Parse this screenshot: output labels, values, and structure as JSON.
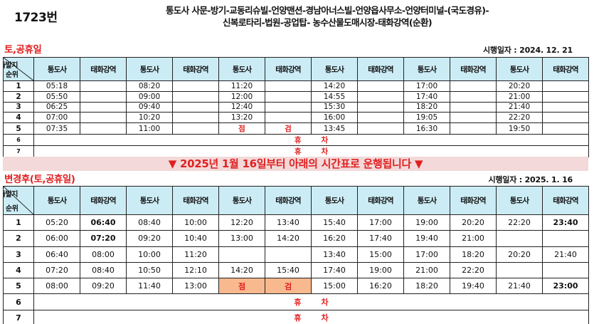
{
  "route": {
    "number": "1723번",
    "line1": "통도사 사문-방기-교동리슈빌-언양맨션-경남아너스빌-언양읍사무소-언양터미널-(국도경유)-",
    "line2": "신복로타리-법원-공업탑- 농수산물도매시장-태화강역(순환)"
  },
  "notice": "▼ 2025년 1월 16일부터 아래의 시간표로 운행됩니다 ▼",
  "corner": {
    "top": "출발지",
    "bottom": "순위"
  },
  "stops": [
    "통도사",
    "태화강역"
  ],
  "closed_text": "휴차",
  "inspection": [
    "점",
    "검"
  ],
  "old": {
    "title": "토,공휴일",
    "effective": "시행일자 : 2024. 12. 21",
    "rows": [
      {
        "n": "1",
        "c": [
          "05:18",
          "",
          "08:20",
          "",
          "11:20",
          "",
          "14:20",
          "",
          "17:00",
          "",
          "20:20",
          ""
        ]
      },
      {
        "n": "2",
        "c": [
          "05:50",
          "",
          "09:00",
          "",
          "12:00",
          "",
          "14:55",
          "",
          "17:40",
          "",
          "21:00",
          ""
        ]
      },
      {
        "n": "3",
        "c": [
          "06:25",
          "",
          "09:40",
          "",
          "12:40",
          "",
          "15:30",
          "",
          "18:20",
          "",
          "21:40",
          ""
        ]
      },
      {
        "n": "4",
        "c": [
          "07:00",
          "",
          "10:20",
          "",
          "13:20",
          "",
          "16:00",
          "",
          "19:05",
          "",
          "22:20",
          ""
        ]
      },
      {
        "n": "5",
        "c": [
          "07:35",
          "",
          "11:00",
          "",
          "점",
          "검",
          "13:45",
          "",
          "16:30",
          "",
          "19:50",
          ""
        ]
      },
      {
        "n": "6",
        "closed": true
      },
      {
        "n": "7",
        "closed": true
      }
    ]
  },
  "new": {
    "title": "변경후(토,공휴일)",
    "effective": "시행일자 : 2025. 1. 16",
    "rows": [
      {
        "n": "1",
        "c": [
          "05:20",
          "06:40",
          "08:40",
          "10:00",
          "12:20",
          "13:40",
          "15:40",
          "17:00",
          "19:00",
          "20:20",
          "22:20",
          "23:40"
        ]
      },
      {
        "n": "2",
        "c": [
          "06:00",
          "07:20",
          "09:20",
          "10:40",
          "13:00",
          "14:20",
          "16:20",
          "17:40",
          "19:40",
          "21:00",
          "",
          ""
        ]
      },
      {
        "n": "3",
        "c": [
          "06:40",
          "08:00",
          "10:00",
          "11:20",
          "",
          "",
          "13:40",
          "15:00",
          "17:00",
          "18:20",
          "20:20",
          "21:40"
        ]
      },
      {
        "n": "4",
        "c": [
          "07:20",
          "08:40",
          "10:50",
          "12:10",
          "14:20",
          "15:40",
          "17:40",
          "19:00",
          "21:00",
          "22:20",
          "",
          ""
        ]
      },
      {
        "n": "5",
        "c": [
          "08:00",
          "09:20",
          "11:40",
          "13:00",
          "점",
          "검",
          "15:00",
          "16:20",
          "18:20",
          "19:40",
          "21:40",
          "23:00"
        ]
      },
      {
        "n": "6",
        "closed": true
      },
      {
        "n": "7",
        "closed": true
      }
    ]
  },
  "colors": {
    "header_bg": "#ccecf5",
    "accent_red": "#e02020",
    "banner_bg": "#f3d9d9",
    "inspection_bg": "#f8b98e"
  }
}
